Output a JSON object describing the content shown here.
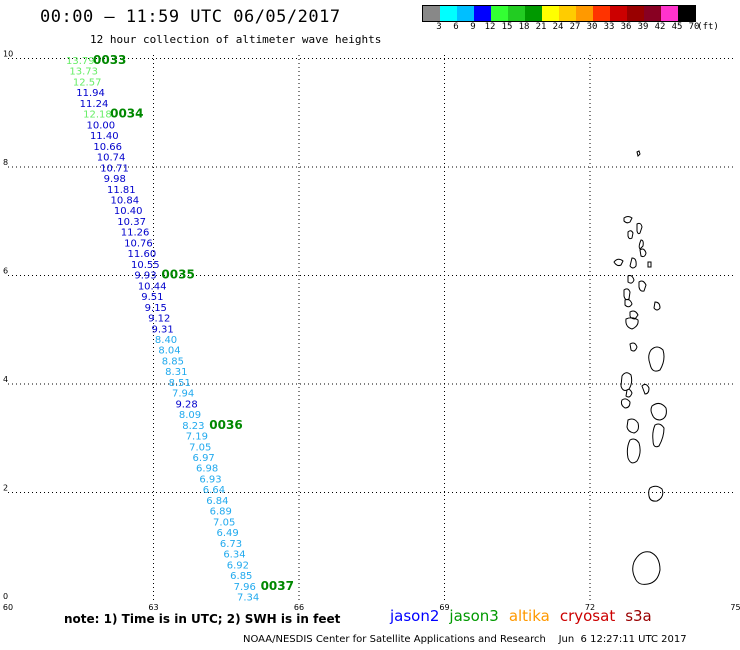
{
  "title": "00:00 – 11:59 UTC 06/05/2017",
  "subtitle": "12 hour collection of altimeter wave heights",
  "legend": {
    "colors": [
      "#888888",
      "#00ffff",
      "#00bfff",
      "#0000ff",
      "#33ff33",
      "#22cc22",
      "#009900",
      "#ffff00",
      "#ffcc00",
      "#ff9900",
      "#ff3300",
      "#cc0000",
      "#990000",
      "#880022",
      "#ff33cc",
      "#000000"
    ],
    "labels": [
      "3",
      "6",
      "9",
      "12",
      "15",
      "18",
      "21",
      "24",
      "27",
      "30",
      "33",
      "36",
      "39",
      "42",
      "45",
      "70",
      "(ft)"
    ]
  },
  "axes": {
    "x_ticks": [
      "60",
      "63",
      "66",
      "69",
      "72",
      "75"
    ],
    "y_ticks": [
      "0",
      "2",
      "4",
      "6",
      "8",
      "10"
    ]
  },
  "wave_colors": {
    "g": "#66ee66",
    "b": "#0000cc",
    "c": "#22aaee"
  },
  "wave_heights": [
    {
      "v": "13.79",
      "c": "g"
    },
    {
      "v": "13.73",
      "c": "g"
    },
    {
      "v": "12.57",
      "c": "g"
    },
    {
      "v": "11.94",
      "c": "b"
    },
    {
      "v": "11.24",
      "c": "b"
    },
    {
      "v": "12.18",
      "c": "g"
    },
    {
      "v": "10.00",
      "c": "b"
    },
    {
      "v": "11.40",
      "c": "b"
    },
    {
      "v": "10.66",
      "c": "b"
    },
    {
      "v": "10.74",
      "c": "b"
    },
    {
      "v": "10.71",
      "c": "b"
    },
    {
      "v": "9.98",
      "c": "b"
    },
    {
      "v": "11.81",
      "c": "b"
    },
    {
      "v": "10.84",
      "c": "b"
    },
    {
      "v": "10.40",
      "c": "b"
    },
    {
      "v": "10.37",
      "c": "b"
    },
    {
      "v": "11.26",
      "c": "b"
    },
    {
      "v": "10.76",
      "c": "b"
    },
    {
      "v": "11.60",
      "c": "b"
    },
    {
      "v": "10.55",
      "c": "b"
    },
    {
      "v": "9.93",
      "c": "b"
    },
    {
      "v": "10.44",
      "c": "b"
    },
    {
      "v": "9.51",
      "c": "b"
    },
    {
      "v": "9.15",
      "c": "b"
    },
    {
      "v": "9.12",
      "c": "b"
    },
    {
      "v": "9.31",
      "c": "b"
    },
    {
      "v": "8.40",
      "c": "c"
    },
    {
      "v": "8.04",
      "c": "c"
    },
    {
      "v": "8.85",
      "c": "c"
    },
    {
      "v": "8.31",
      "c": "c"
    },
    {
      "v": "8.51",
      "c": "c"
    },
    {
      "v": "7.94",
      "c": "c"
    },
    {
      "v": "9.28",
      "c": "b"
    },
    {
      "v": "8.09",
      "c": "c"
    },
    {
      "v": "8.23",
      "c": "c"
    },
    {
      "v": "7.19",
      "c": "c"
    },
    {
      "v": "7.05",
      "c": "c"
    },
    {
      "v": "6.97",
      "c": "c"
    },
    {
      "v": "6.98",
      "c": "c"
    },
    {
      "v": "6.93",
      "c": "c"
    },
    {
      "v": "6.64",
      "c": "c"
    },
    {
      "v": "6.84",
      "c": "c"
    },
    {
      "v": "6.89",
      "c": "c"
    },
    {
      "v": "7.05",
      "c": "c"
    },
    {
      "v": "6.49",
      "c": "c"
    },
    {
      "v": "6.73",
      "c": "c"
    },
    {
      "v": "6.34",
      "c": "c"
    },
    {
      "v": "6.92",
      "c": "c"
    },
    {
      "v": "6.85",
      "c": "c"
    },
    {
      "v": "7.96",
      "c": "c"
    },
    {
      "v": "7.34",
      "c": "c"
    }
  ],
  "pass_color": "#008800",
  "pass_labels": [
    {
      "label": "0033",
      "row": 0
    },
    {
      "label": "0034",
      "row": 5
    },
    {
      "label": "0035",
      "row": 20
    },
    {
      "label": "0036",
      "row": 34
    },
    {
      "label": "0037",
      "row": 49
    }
  ],
  "note": "note: 1) Time is in UTC; 2) SWH is in feet",
  "satellites": [
    {
      "name": "jason2",
      "color": "#0000ff"
    },
    {
      "name": "jason3",
      "color": "#009900"
    },
    {
      "name": "altika",
      "color": "#ff9900"
    },
    {
      "name": "cryosat",
      "color": "#cc0000"
    },
    {
      "name": "s3a",
      "color": "#990000"
    }
  ],
  "footer": "NOAA/NESDIS Center for Satellite Applications and Research    Jun  6 12:27:11 UTC 2017"
}
